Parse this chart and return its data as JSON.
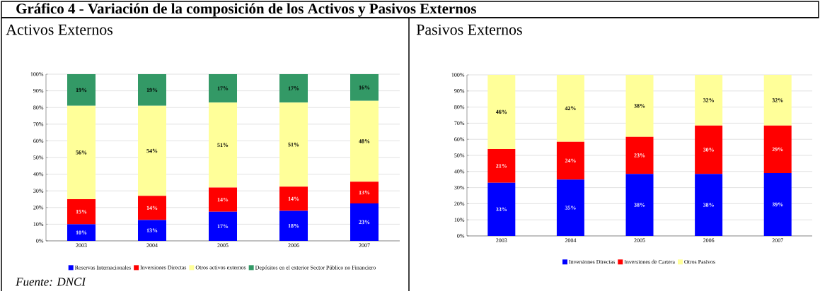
{
  "chart_data": [
    {
      "type": "bar",
      "stacked": true,
      "title": "Activos Externos",
      "annotations": [
        "Gráfico 4 - Variación de la composición de los Activos y Pasivos Externos",
        "Fuente: DNCI"
      ],
      "categories": [
        "2003",
        "2004",
        "2005",
        "2006",
        "2007"
      ],
      "series": [
        {
          "name": "Reservas Internacionales",
          "color": "#0000ff",
          "values": [
            10,
            12.5,
            17.5,
            18,
            22.5
          ],
          "value_labels": [
            "10%",
            "13%",
            "17%",
            "18%",
            "23%"
          ]
        },
        {
          "name": "Inversiones Directas",
          "color": "#ff0000",
          "values": [
            15,
            14.5,
            14.5,
            14.5,
            13
          ],
          "value_labels": [
            "15%",
            "14%",
            "14%",
            "14%",
            "13%"
          ]
        },
        {
          "name": "Otros activos externos",
          "color": "#ffff99",
          "values": [
            56,
            54,
            51,
            50.5,
            48.5
          ],
          "value_labels": [
            "56%",
            "54%",
            "51%",
            "51%",
            "48%"
          ]
        },
        {
          "name": "Depósitos en el exterior Sector Público no Financiero",
          "color": "#339966",
          "values": [
            19,
            19,
            17,
            17,
            16
          ],
          "value_labels": [
            "19%",
            "19%",
            "17%",
            "17%",
            "16%"
          ]
        }
      ],
      "ylim": [
        0,
        100
      ],
      "yticks": [
        {
          "value": 0,
          "label": "0%"
        },
        {
          "value": 10,
          "label": "10%"
        },
        {
          "value": 20,
          "label": "20%"
        },
        {
          "value": 30,
          "label": "30%"
        },
        {
          "value": 40,
          "label": "40%"
        },
        {
          "value": 50,
          "label": "50%"
        },
        {
          "value": 60,
          "label": "60%"
        },
        {
          "value": 70,
          "label": "70%"
        },
        {
          "value": 80,
          "label": "80%"
        },
        {
          "value": 90,
          "label": "90%"
        },
        {
          "value": 100,
          "label": "100%"
        }
      ],
      "grid": "y",
      "legend": "bottom"
    },
    {
      "type": "bar",
      "stacked": true,
      "title": "Pasivos Externos",
      "categories": [
        "2003",
        "2004",
        "2005",
        "2006",
        "2007"
      ],
      "series": [
        {
          "name": "Inversiones Directas",
          "color": "#0000ff",
          "values": [
            33,
            35,
            38.5,
            38.5,
            39
          ],
          "value_labels": [
            "33%",
            "35%",
            "38%",
            "38%",
            "39%"
          ]
        },
        {
          "name": "Inversiones de Cartera",
          "color": "#ff0000",
          "values": [
            21,
            23.5,
            23,
            30,
            29.5
          ],
          "value_labels": [
            "21%",
            "24%",
            "23%",
            "30%",
            "29%"
          ]
        },
        {
          "name": "Otros Pasivos",
          "color": "#ffff99",
          "values": [
            46,
            41.5,
            38.5,
            31.5,
            31.5
          ],
          "value_labels": [
            "46%",
            "42%",
            "38%",
            "32%",
            "32%"
          ]
        }
      ],
      "ylim": [
        0,
        100
      ],
      "yticks": [
        {
          "value": 0,
          "label": "0%"
        },
        {
          "value": 10,
          "label": "10%"
        },
        {
          "value": 20,
          "label": "20%"
        },
        {
          "value": 30,
          "label": "30%"
        },
        {
          "value": 40,
          "label": "40%"
        },
        {
          "value": 50,
          "label": "50%"
        },
        {
          "value": 60,
          "label": "60%"
        },
        {
          "value": 70,
          "label": "70%"
        },
        {
          "value": 80,
          "label": "80%"
        },
        {
          "value": 90,
          "label": "90%"
        },
        {
          "value": 100,
          "label": "100%"
        }
      ],
      "grid": "y",
      "legend": "bottom"
    }
  ]
}
